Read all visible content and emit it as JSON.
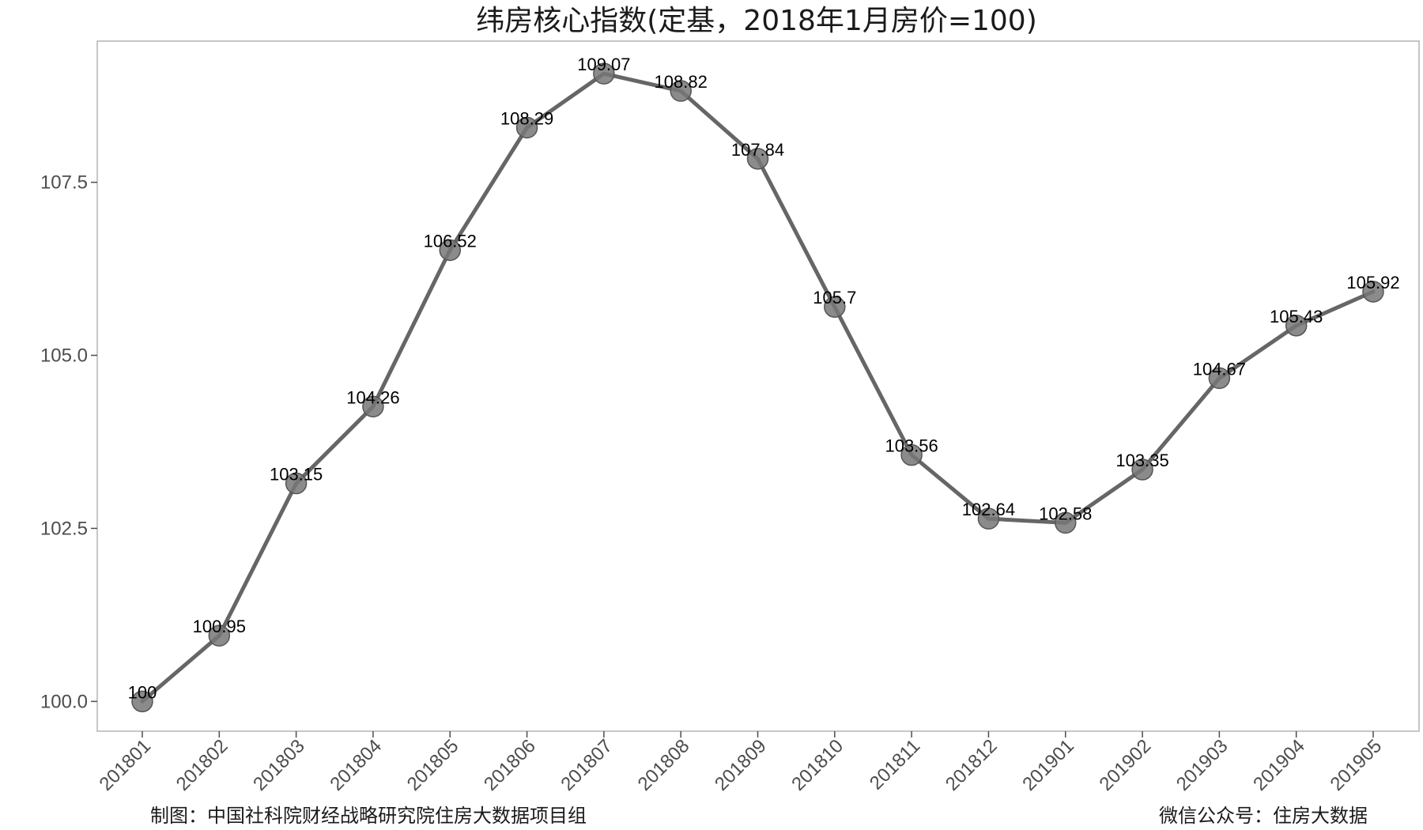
{
  "chart_data": {
    "type": "line",
    "title": "纬房核心指数(定基，2018年1月房价=100)",
    "xlabel": "",
    "ylabel": "",
    "categories": [
      "201801",
      "201802",
      "201803",
      "201804",
      "201805",
      "201806",
      "201807",
      "201808",
      "201809",
      "201810",
      "201811",
      "201812",
      "201901",
      "201902",
      "201903",
      "201904",
      "201905"
    ],
    "series": [
      {
        "values": [
          100,
          100.95,
          103.15,
          104.26,
          106.52,
          108.29,
          109.07,
          108.82,
          107.84,
          105.7,
          103.56,
          102.64,
          102.58,
          103.35,
          104.67,
          105.43,
          105.92
        ],
        "labels": [
          "100",
          "100.95",
          "103.15",
          "104.26",
          "106.52",
          "108.29",
          "109.07",
          "108.82",
          "107.84",
          "105.7",
          "103.56",
          "102.64",
          "102.58",
          "103.35",
          "104.67",
          "105.43",
          "105.92"
        ]
      }
    ],
    "yticks": [
      "100.0",
      "102.5",
      "105.0",
      "107.5"
    ],
    "ytick_values": [
      100,
      102.5,
      105,
      107.5
    ],
    "ylim": [
      99.57,
      109.54
    ],
    "grid": false,
    "colors": {
      "line": "#666666",
      "point": "#777777",
      "frame": "#b3b3b3"
    }
  },
  "footer": {
    "left": "制图：中国社科院财经战略研究院住房大数据项目组",
    "right": "微信公众号：住房大数据"
  }
}
